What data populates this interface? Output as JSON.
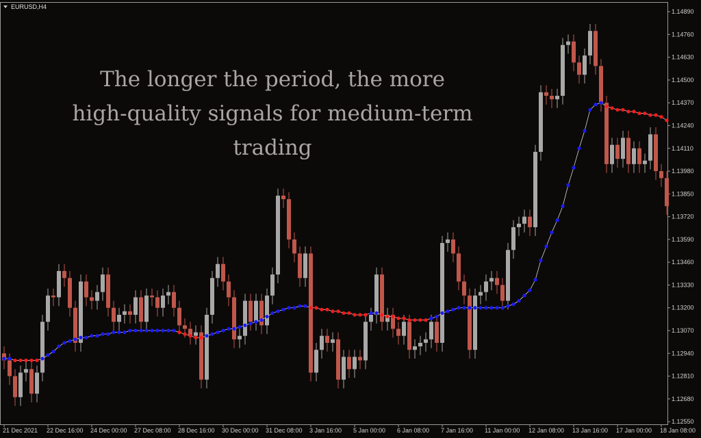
{
  "chart_data": {
    "type": "candlestick",
    "title": "EURUSD,H4",
    "annotation": [
      "The longer the period, the more",
      "high-quality signals for medium-term",
      "trading"
    ],
    "categories": [
      "21 Dec 2021",
      null,
      null,
      null,
      null,
      null,
      null,
      null,
      "22 Dec 16:00",
      null,
      null,
      null,
      null,
      null,
      null,
      null,
      "24 Dec 00:00",
      null,
      null,
      null,
      null,
      null,
      null,
      null,
      "27 Dec 08:00",
      null,
      null,
      null,
      null,
      null,
      null,
      null,
      "28 Dec 16:00",
      null,
      null,
      null,
      null,
      null,
      null,
      null,
      "30 Dec 00:00",
      null,
      null,
      null,
      null,
      null,
      null,
      null,
      "31 Dec 08:00",
      null,
      null,
      null,
      null,
      null,
      null,
      null,
      "3 Jan 16:00",
      null,
      null,
      null,
      null,
      null,
      null,
      null,
      "5 Jan 00:00",
      null,
      null,
      null,
      null,
      null,
      null,
      null,
      "6 Jan 08:00",
      null,
      null,
      null,
      null,
      null,
      null,
      null,
      "7 Jan 16:00",
      null,
      null,
      null,
      null,
      null,
      null,
      null,
      "11 Jan 00:00",
      null,
      null,
      null,
      null,
      null,
      null,
      null,
      "12 Jan 08:00",
      null,
      null,
      null,
      null,
      null,
      null,
      null,
      "13 Jan 16:00",
      null,
      null,
      null,
      null,
      null,
      null,
      null,
      "17 Jan 00:00",
      null,
      null,
      null,
      null,
      null,
      null,
      null,
      "18 Jan 08:00",
      null
    ],
    "open": [
      1.1294,
      1.129,
      1.1281,
      1.1269,
      1.1283,
      1.1285,
      1.1271,
      1.1283,
      1.1312,
      1.1327,
      1.1326,
      1.1341,
      1.1337,
      1.132,
      1.13,
      1.1335,
      1.1326,
      1.1324,
      1.1329,
      1.1339,
      1.132,
      1.1312,
      1.1316,
      1.1318,
      1.1316,
      1.1326,
      1.1312,
      1.1327,
      1.1326,
      1.132,
      1.1327,
      1.1329,
      1.132,
      1.131,
      1.1308,
      1.1304,
      1.1306,
      1.1279,
      1.1316,
      1.1337,
      1.1345,
      1.1335,
      1.1326,
      1.1302,
      1.1304,
      1.1324,
      1.1312,
      1.1324,
      1.131,
      1.1327,
      1.1339,
      1.1384,
      1.1382,
      1.1359,
      1.1351,
      1.1337,
      1.1351,
      1.1283,
      1.1296,
      1.1304,
      1.13,
      1.1302,
      1.1279,
      1.1292,
      1.1285,
      1.1292,
      1.129,
      1.1312,
      1.1316,
      1.1339,
      1.1312,
      1.1316,
      1.1308,
      1.1304,
      1.1312,
      1.1296,
      1.1298,
      1.13,
      1.1302,
      1.1312,
      1.13,
      1.1357,
      1.1359,
      1.1351,
      1.1335,
      1.1327,
      1.1296,
      1.1327,
      1.1329,
      1.1335,
      1.1337,
      1.1333,
      1.1324,
      1.1353,
      1.1366,
      1.1368,
      1.1372,
      1.1366,
      1.1409,
      1.1443,
      1.1441,
      1.1439,
      1.1441,
      1.147,
      1.1472,
      1.146,
      1.1453,
      1.1464,
      1.1478,
      1.1458,
      1.1437,
      1.1402,
      1.1413,
      1.1405,
      1.1417,
      1.1402,
      1.1411,
      1.1402,
      1.1404,
      1.1419,
      1.1398,
      1.1394
    ],
    "high": [
      1.1298,
      1.1294,
      1.1285,
      1.1287,
      1.1289,
      1.1289,
      1.1287,
      1.1316,
      1.1331,
      1.1331,
      1.1345,
      1.1345,
      1.1341,
      1.1324,
      1.1339,
      1.1339,
      1.133,
      1.1333,
      1.1343,
      1.1343,
      1.1324,
      1.132,
      1.1322,
      1.1322,
      1.133,
      1.133,
      1.1331,
      1.1331,
      1.133,
      1.1331,
      1.1333,
      1.1333,
      1.1324,
      1.1314,
      1.1312,
      1.131,
      1.131,
      1.132,
      1.1341,
      1.1349,
      1.1349,
      1.1339,
      1.133,
      1.1308,
      1.1328,
      1.1328,
      1.1328,
      1.1328,
      1.1331,
      1.1343,
      1.1388,
      1.1388,
      1.1386,
      1.1363,
      1.1355,
      1.1355,
      1.1355,
      1.13,
      1.1308,
      1.1308,
      1.1306,
      1.1306,
      1.1296,
      1.1296,
      1.1296,
      1.1296,
      1.1316,
      1.132,
      1.1343,
      1.1343,
      1.132,
      1.132,
      1.1312,
      1.1316,
      1.1316,
      1.1302,
      1.1304,
      1.1306,
      1.1316,
      1.1316,
      1.1361,
      1.1363,
      1.1363,
      1.1355,
      1.1339,
      1.1331,
      1.1331,
      1.1333,
      1.1339,
      1.1341,
      1.1341,
      1.1337,
      1.1357,
      1.137,
      1.1372,
      1.1376,
      1.1376,
      1.1413,
      1.1447,
      1.1447,
      1.1445,
      1.1445,
      1.1474,
      1.1476,
      1.1476,
      1.1464,
      1.1468,
      1.1482,
      1.1482,
      1.1462,
      1.1441,
      1.1417,
      1.1417,
      1.1421,
      1.1421,
      1.1415,
      1.1415,
      1.1408,
      1.1423,
      1.1423,
      1.1402,
      1.1398
    ],
    "low": [
      1.1285,
      1.1276,
      1.1264,
      1.1264,
      1.1278,
      1.1266,
      1.1266,
      1.1278,
      1.1307,
      1.1321,
      1.1321,
      1.1332,
      1.1315,
      1.1295,
      1.1295,
      1.1321,
      1.1319,
      1.1319,
      1.1324,
      1.1315,
      1.1307,
      1.1307,
      1.1311,
      1.1311,
      1.1311,
      1.1307,
      1.1307,
      1.1321,
      1.1315,
      1.1315,
      1.1322,
      1.1315,
      1.1305,
      1.1303,
      1.1299,
      1.1299,
      1.1274,
      1.1274,
      1.1311,
      1.1332,
      1.133,
      1.1321,
      1.1297,
      1.1297,
      1.1299,
      1.1307,
      1.1307,
      1.1305,
      1.1305,
      1.1322,
      1.1334,
      1.1377,
      1.1354,
      1.1346,
      1.1332,
      1.1332,
      1.1278,
      1.1278,
      1.1291,
      1.1295,
      1.1295,
      1.1274,
      1.1274,
      1.128,
      1.128,
      1.1285,
      1.1285,
      1.1307,
      1.1311,
      1.1307,
      1.1307,
      1.1303,
      1.1299,
      1.1299,
      1.1291,
      1.1291,
      1.1293,
      1.1295,
      1.1297,
      1.1295,
      1.1295,
      1.1352,
      1.1346,
      1.133,
      1.1322,
      1.1291,
      1.1291,
      1.1322,
      1.1324,
      1.133,
      1.1328,
      1.1319,
      1.1319,
      1.1348,
      1.1361,
      1.1363,
      1.1361,
      1.1361,
      1.1404,
      1.1436,
      1.1434,
      1.1434,
      1.1436,
      1.1465,
      1.1455,
      1.1448,
      1.1448,
      1.1459,
      1.1453,
      1.1432,
      1.1397,
      1.1397,
      1.14,
      1.14,
      1.1397,
      1.1397,
      1.1397,
      1.1397,
      1.1399,
      1.1393,
      1.1389,
      1.1373
    ],
    "close": [
      1.129,
      1.1281,
      1.1269,
      1.1283,
      1.1285,
      1.1271,
      1.1283,
      1.1312,
      1.1327,
      1.1326,
      1.1341,
      1.1337,
      1.132,
      1.13,
      1.1335,
      1.1326,
      1.1324,
      1.1329,
      1.1339,
      1.132,
      1.1312,
      1.1316,
      1.1318,
      1.1316,
      1.1326,
      1.1312,
      1.1327,
      1.1326,
      1.132,
      1.1327,
      1.1329,
      1.132,
      1.131,
      1.1308,
      1.1304,
      1.1306,
      1.1279,
      1.1316,
      1.1337,
      1.1345,
      1.1335,
      1.1326,
      1.1302,
      1.1304,
      1.1324,
      1.1312,
      1.1324,
      1.131,
      1.1327,
      1.1339,
      1.1384,
      1.1382,
      1.1359,
      1.1351,
      1.1337,
      1.1351,
      1.1283,
      1.1296,
      1.1304,
      1.13,
      1.1302,
      1.1279,
      1.1292,
      1.1285,
      1.1292,
      1.129,
      1.1312,
      1.1316,
      1.1339,
      1.1312,
      1.1316,
      1.1308,
      1.1304,
      1.1312,
      1.1296,
      1.1298,
      1.13,
      1.1302,
      1.1312,
      1.13,
      1.1357,
      1.1359,
      1.1351,
      1.1335,
      1.1327,
      1.1296,
      1.1327,
      1.1329,
      1.1335,
      1.1337,
      1.1333,
      1.1324,
      1.1353,
      1.1366,
      1.1368,
      1.1372,
      1.1366,
      1.1409,
      1.1443,
      1.1441,
      1.1439,
      1.1441,
      1.147,
      1.1472,
      1.146,
      1.1453,
      1.1464,
      1.1478,
      1.1458,
      1.1437,
      1.1402,
      1.1413,
      1.1405,
      1.1417,
      1.1402,
      1.1411,
      1.1402,
      1.1404,
      1.1419,
      1.1398,
      1.1394,
      1.1378
    ],
    "up_color": "#a8a8a8",
    "down_color": "#c0574b",
    "indicator": {
      "values": [
        1.1291,
        1.1291,
        1.129,
        1.129,
        1.129,
        1.129,
        1.129,
        1.1291,
        1.1293,
        1.1295,
        1.1298,
        1.13,
        1.1301,
        1.1302,
        1.1303,
        1.1303,
        1.1304,
        1.1304,
        1.1305,
        1.1305,
        1.1306,
        1.1306,
        1.1306,
        1.1307,
        1.1307,
        1.1307,
        1.1307,
        1.1307,
        1.1307,
        1.1307,
        1.1307,
        1.1307,
        1.1306,
        1.1305,
        1.1304,
        1.1303,
        1.1303,
        1.1304,
        1.1305,
        1.1306,
        1.1307,
        1.1308,
        1.1308,
        1.1309,
        1.131,
        1.1311,
        1.1312,
        1.1313,
        1.1315,
        1.1317,
        1.1318,
        1.1319,
        1.132,
        1.132,
        1.1321,
        1.1321,
        1.132,
        1.132,
        1.1319,
        1.1319,
        1.1318,
        1.1318,
        1.1317,
        1.1317,
        1.1316,
        1.1316,
        1.1316,
        1.1317,
        1.1317,
        1.1316,
        1.1315,
        1.1315,
        1.1314,
        1.1314,
        1.1313,
        1.1313,
        1.1313,
        1.1313,
        1.1314,
        1.1315,
        1.1317,
        1.1318,
        1.1319,
        1.132,
        1.132,
        1.132,
        1.132,
        1.132,
        1.132,
        1.132,
        1.132,
        1.132,
        1.1321,
        1.1322,
        1.1324,
        1.1327,
        1.133,
        1.1336,
        1.1347,
        1.1355,
        1.1363,
        1.137,
        1.1378,
        1.139,
        1.14,
        1.1411,
        1.1421,
        1.1433,
        1.1436,
        1.1437,
        1.1435,
        1.1434,
        1.1433,
        1.1433,
        1.1432,
        1.1432,
        1.1431,
        1.1431,
        1.143,
        1.143,
        1.1429,
        1.1427
      ],
      "up_color": "#1a1aff",
      "down_color": "#ff1a1a",
      "line_color": "#d8d8d8"
    },
    "ylim": [
      1.12535,
      1.14945
    ],
    "yticks": [
      {
        "value": 1.1489,
        "label": "1.14890"
      },
      {
        "value": 1.1476,
        "label": "1.14760"
      },
      {
        "value": 1.1463,
        "label": "1.14630"
      },
      {
        "value": 1.145,
        "label": "1.14500"
      },
      {
        "value": 1.1437,
        "label": "1.14370"
      },
      {
        "value": 1.1424,
        "label": "1.14240"
      },
      {
        "value": 1.1411,
        "label": "1.14110"
      },
      {
        "value": 1.1398,
        "label": "1.13980"
      },
      {
        "value": 1.1385,
        "label": "1.13850"
      },
      {
        "value": 1.1372,
        "label": "1.13720"
      },
      {
        "value": 1.1359,
        "label": "1.13590"
      },
      {
        "value": 1.1346,
        "label": "1.13460"
      },
      {
        "value": 1.1333,
        "label": "1.13330"
      },
      {
        "value": 1.132,
        "label": "1.13200"
      },
      {
        "value": 1.1307,
        "label": "1.13070"
      },
      {
        "value": 1.1294,
        "label": "1.12940"
      },
      {
        "value": 1.1281,
        "label": "1.12810"
      },
      {
        "value": 1.1268,
        "label": "1.12680"
      },
      {
        "value": 1.1255,
        "label": "1.12550"
      }
    ]
  }
}
